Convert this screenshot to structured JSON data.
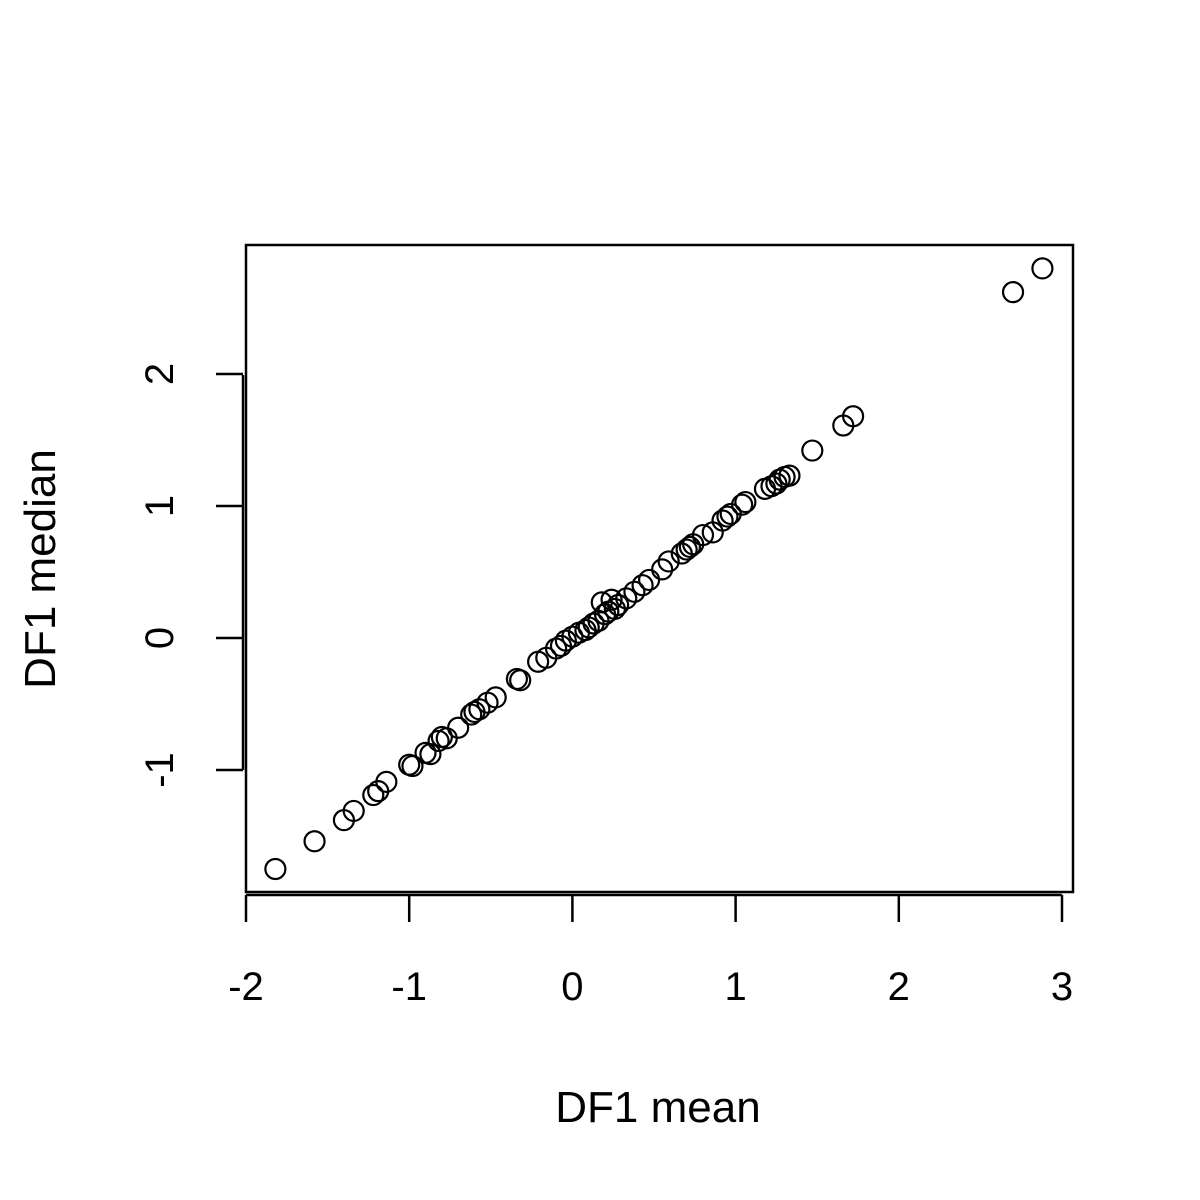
{
  "chart_data": {
    "type": "scatter",
    "title": "",
    "xlabel": "DF1 mean",
    "ylabel": "DF1 median",
    "xlim": [
      -2,
      3
    ],
    "ylim": [
      -1.95,
      2.95
    ],
    "xticks": [
      -2,
      -1,
      0,
      1,
      2,
      3
    ],
    "yticks": [
      -1,
      0,
      1,
      2
    ],
    "xtick_labels": [
      "-2",
      "-1",
      "0",
      "1",
      "2",
      "3"
    ],
    "ytick_labels": [
      "-1",
      "0",
      "1",
      "2"
    ],
    "grid": false,
    "legend": "none",
    "marker": "open-circle",
    "color": "#000000",
    "points": [
      {
        "x": -1.82,
        "y": -1.75
      },
      {
        "x": -1.58,
        "y": -1.54
      },
      {
        "x": -1.4,
        "y": -1.38
      },
      {
        "x": -1.34,
        "y": -1.31
      },
      {
        "x": -1.22,
        "y": -1.19
      },
      {
        "x": -1.19,
        "y": -1.16
      },
      {
        "x": -1.14,
        "y": -1.09
      },
      {
        "x": -1.0,
        "y": -0.96
      },
      {
        "x": -0.98,
        "y": -0.97
      },
      {
        "x": -0.9,
        "y": -0.87
      },
      {
        "x": -0.87,
        "y": -0.88
      },
      {
        "x": -0.82,
        "y": -0.78
      },
      {
        "x": -0.8,
        "y": -0.75
      },
      {
        "x": -0.77,
        "y": -0.76
      },
      {
        "x": -0.7,
        "y": -0.68
      },
      {
        "x": -0.62,
        "y": -0.58
      },
      {
        "x": -0.6,
        "y": -0.56
      },
      {
        "x": -0.57,
        "y": -0.54
      },
      {
        "x": -0.52,
        "y": -0.49
      },
      {
        "x": -0.47,
        "y": -0.45
      },
      {
        "x": -0.34,
        "y": -0.31
      },
      {
        "x": -0.32,
        "y": -0.32
      },
      {
        "x": -0.21,
        "y": -0.18
      },
      {
        "x": -0.16,
        "y": -0.15
      },
      {
        "x": -0.1,
        "y": -0.08
      },
      {
        "x": -0.07,
        "y": -0.06
      },
      {
        "x": -0.04,
        "y": -0.02
      },
      {
        "x": 0.0,
        "y": 0.01
      },
      {
        "x": 0.04,
        "y": 0.04
      },
      {
        "x": 0.08,
        "y": 0.06
      },
      {
        "x": 0.1,
        "y": 0.08
      },
      {
        "x": 0.13,
        "y": 0.11
      },
      {
        "x": 0.16,
        "y": 0.13
      },
      {
        "x": 0.18,
        "y": 0.27
      },
      {
        "x": 0.2,
        "y": 0.18
      },
      {
        "x": 0.22,
        "y": 0.2
      },
      {
        "x": 0.24,
        "y": 0.29
      },
      {
        "x": 0.26,
        "y": 0.22
      },
      {
        "x": 0.28,
        "y": 0.25
      },
      {
        "x": 0.33,
        "y": 0.3
      },
      {
        "x": 0.38,
        "y": 0.35
      },
      {
        "x": 0.43,
        "y": 0.4
      },
      {
        "x": 0.47,
        "y": 0.44
      },
      {
        "x": 0.55,
        "y": 0.52
      },
      {
        "x": 0.59,
        "y": 0.58
      },
      {
        "x": 0.67,
        "y": 0.64
      },
      {
        "x": 0.7,
        "y": 0.67
      },
      {
        "x": 0.72,
        "y": 0.69
      },
      {
        "x": 0.74,
        "y": 0.71
      },
      {
        "x": 0.8,
        "y": 0.78
      },
      {
        "x": 0.86,
        "y": 0.8
      },
      {
        "x": 0.92,
        "y": 0.89
      },
      {
        "x": 0.95,
        "y": 0.92
      },
      {
        "x": 0.97,
        "y": 0.94
      },
      {
        "x": 1.04,
        "y": 1.01
      },
      {
        "x": 1.06,
        "y": 1.03
      },
      {
        "x": 1.18,
        "y": 1.13
      },
      {
        "x": 1.22,
        "y": 1.15
      },
      {
        "x": 1.25,
        "y": 1.17
      },
      {
        "x": 1.27,
        "y": 1.2
      },
      {
        "x": 1.3,
        "y": 1.22
      },
      {
        "x": 1.33,
        "y": 1.23
      },
      {
        "x": 1.47,
        "y": 1.42
      },
      {
        "x": 1.66,
        "y": 1.61
      },
      {
        "x": 1.72,
        "y": 1.68
      },
      {
        "x": 2.7,
        "y": 2.62
      },
      {
        "x": 2.88,
        "y": 2.8
      }
    ]
  }
}
